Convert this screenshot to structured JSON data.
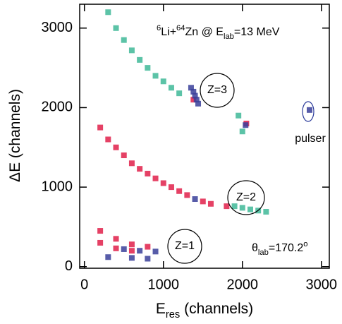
{
  "chart_data": {
    "type": "scatter",
    "xlim": [
      -60,
      3100
    ],
    "ylim": [
      -20,
      3300
    ],
    "xticks": [
      0,
      1000,
      2000,
      3000
    ],
    "yticks": [
      0,
      1000,
      2000,
      3000
    ],
    "x_label": [
      {
        "text": "E",
        "style": "normal"
      },
      {
        "text": "res",
        "style": "sub"
      },
      {
        "text": " (channels)",
        "style": "normal"
      }
    ],
    "y_label": [
      {
        "text": "ΔE (channels)",
        "style": "normal"
      }
    ],
    "reaction": [
      {
        "text": "6",
        "style": "sup"
      },
      {
        "text": "Li+",
        "style": "normal"
      },
      {
        "text": "64",
        "style": "sup"
      },
      {
        "text": "Zn @ E",
        "style": "normal"
      },
      {
        "text": "lab",
        "style": "sub"
      },
      {
        "text": "=13 MeV",
        "style": "normal"
      }
    ],
    "angle": [
      {
        "text": "θ",
        "style": "normal"
      },
      {
        "text": "lab",
        "style": "sub"
      },
      {
        "text": "=170.2",
        "style": "normal"
      },
      {
        "text": "o",
        "style": "sup"
      }
    ],
    "labels": {
      "z3": "Z=3",
      "z2": "Z=2",
      "z1": "Z=1",
      "pulser": "pulser"
    },
    "series": [
      {
        "color": "#40b898",
        "x": [
          300,
          400,
          500,
          600,
          700,
          800,
          900,
          1000,
          1100,
          1200,
          1900,
          2000,
          2100,
          2200,
          2300,
          1950,
          2000
        ],
        "values": [
          3200,
          3000,
          2850,
          2720,
          2600,
          2500,
          2400,
          2330,
          2250,
          2180,
          760,
          740,
          720,
          705,
          690,
          1900,
          1700
        ]
      },
      {
        "color": "#e0204a",
        "x": [
          200,
          300,
          400,
          500,
          600,
          700,
          800,
          900,
          1000,
          1100,
          1200,
          1300,
          1500,
          1600,
          1800,
          200,
          400,
          600,
          800,
          200,
          400,
          600,
          2050,
          1380
        ],
        "values": [
          1750,
          1600,
          1500,
          1400,
          1300,
          1230,
          1170,
          1110,
          1050,
          1000,
          950,
          900,
          820,
          790,
          760,
          450,
          350,
          280,
          250,
          300,
          230,
          200,
          1800,
          2100
        ]
      },
      {
        "color": "#3a3f9a",
        "x": [
          1350,
          1380,
          1400,
          1420,
          1440,
          1400,
          2040,
          2850,
          500,
          700,
          900,
          600,
          800,
          300
        ],
        "values": [
          2250,
          2200,
          2150,
          2100,
          2050,
          850,
          1780,
          1970,
          220,
          200,
          190,
          110,
          100,
          120
        ]
      }
    ]
  }
}
